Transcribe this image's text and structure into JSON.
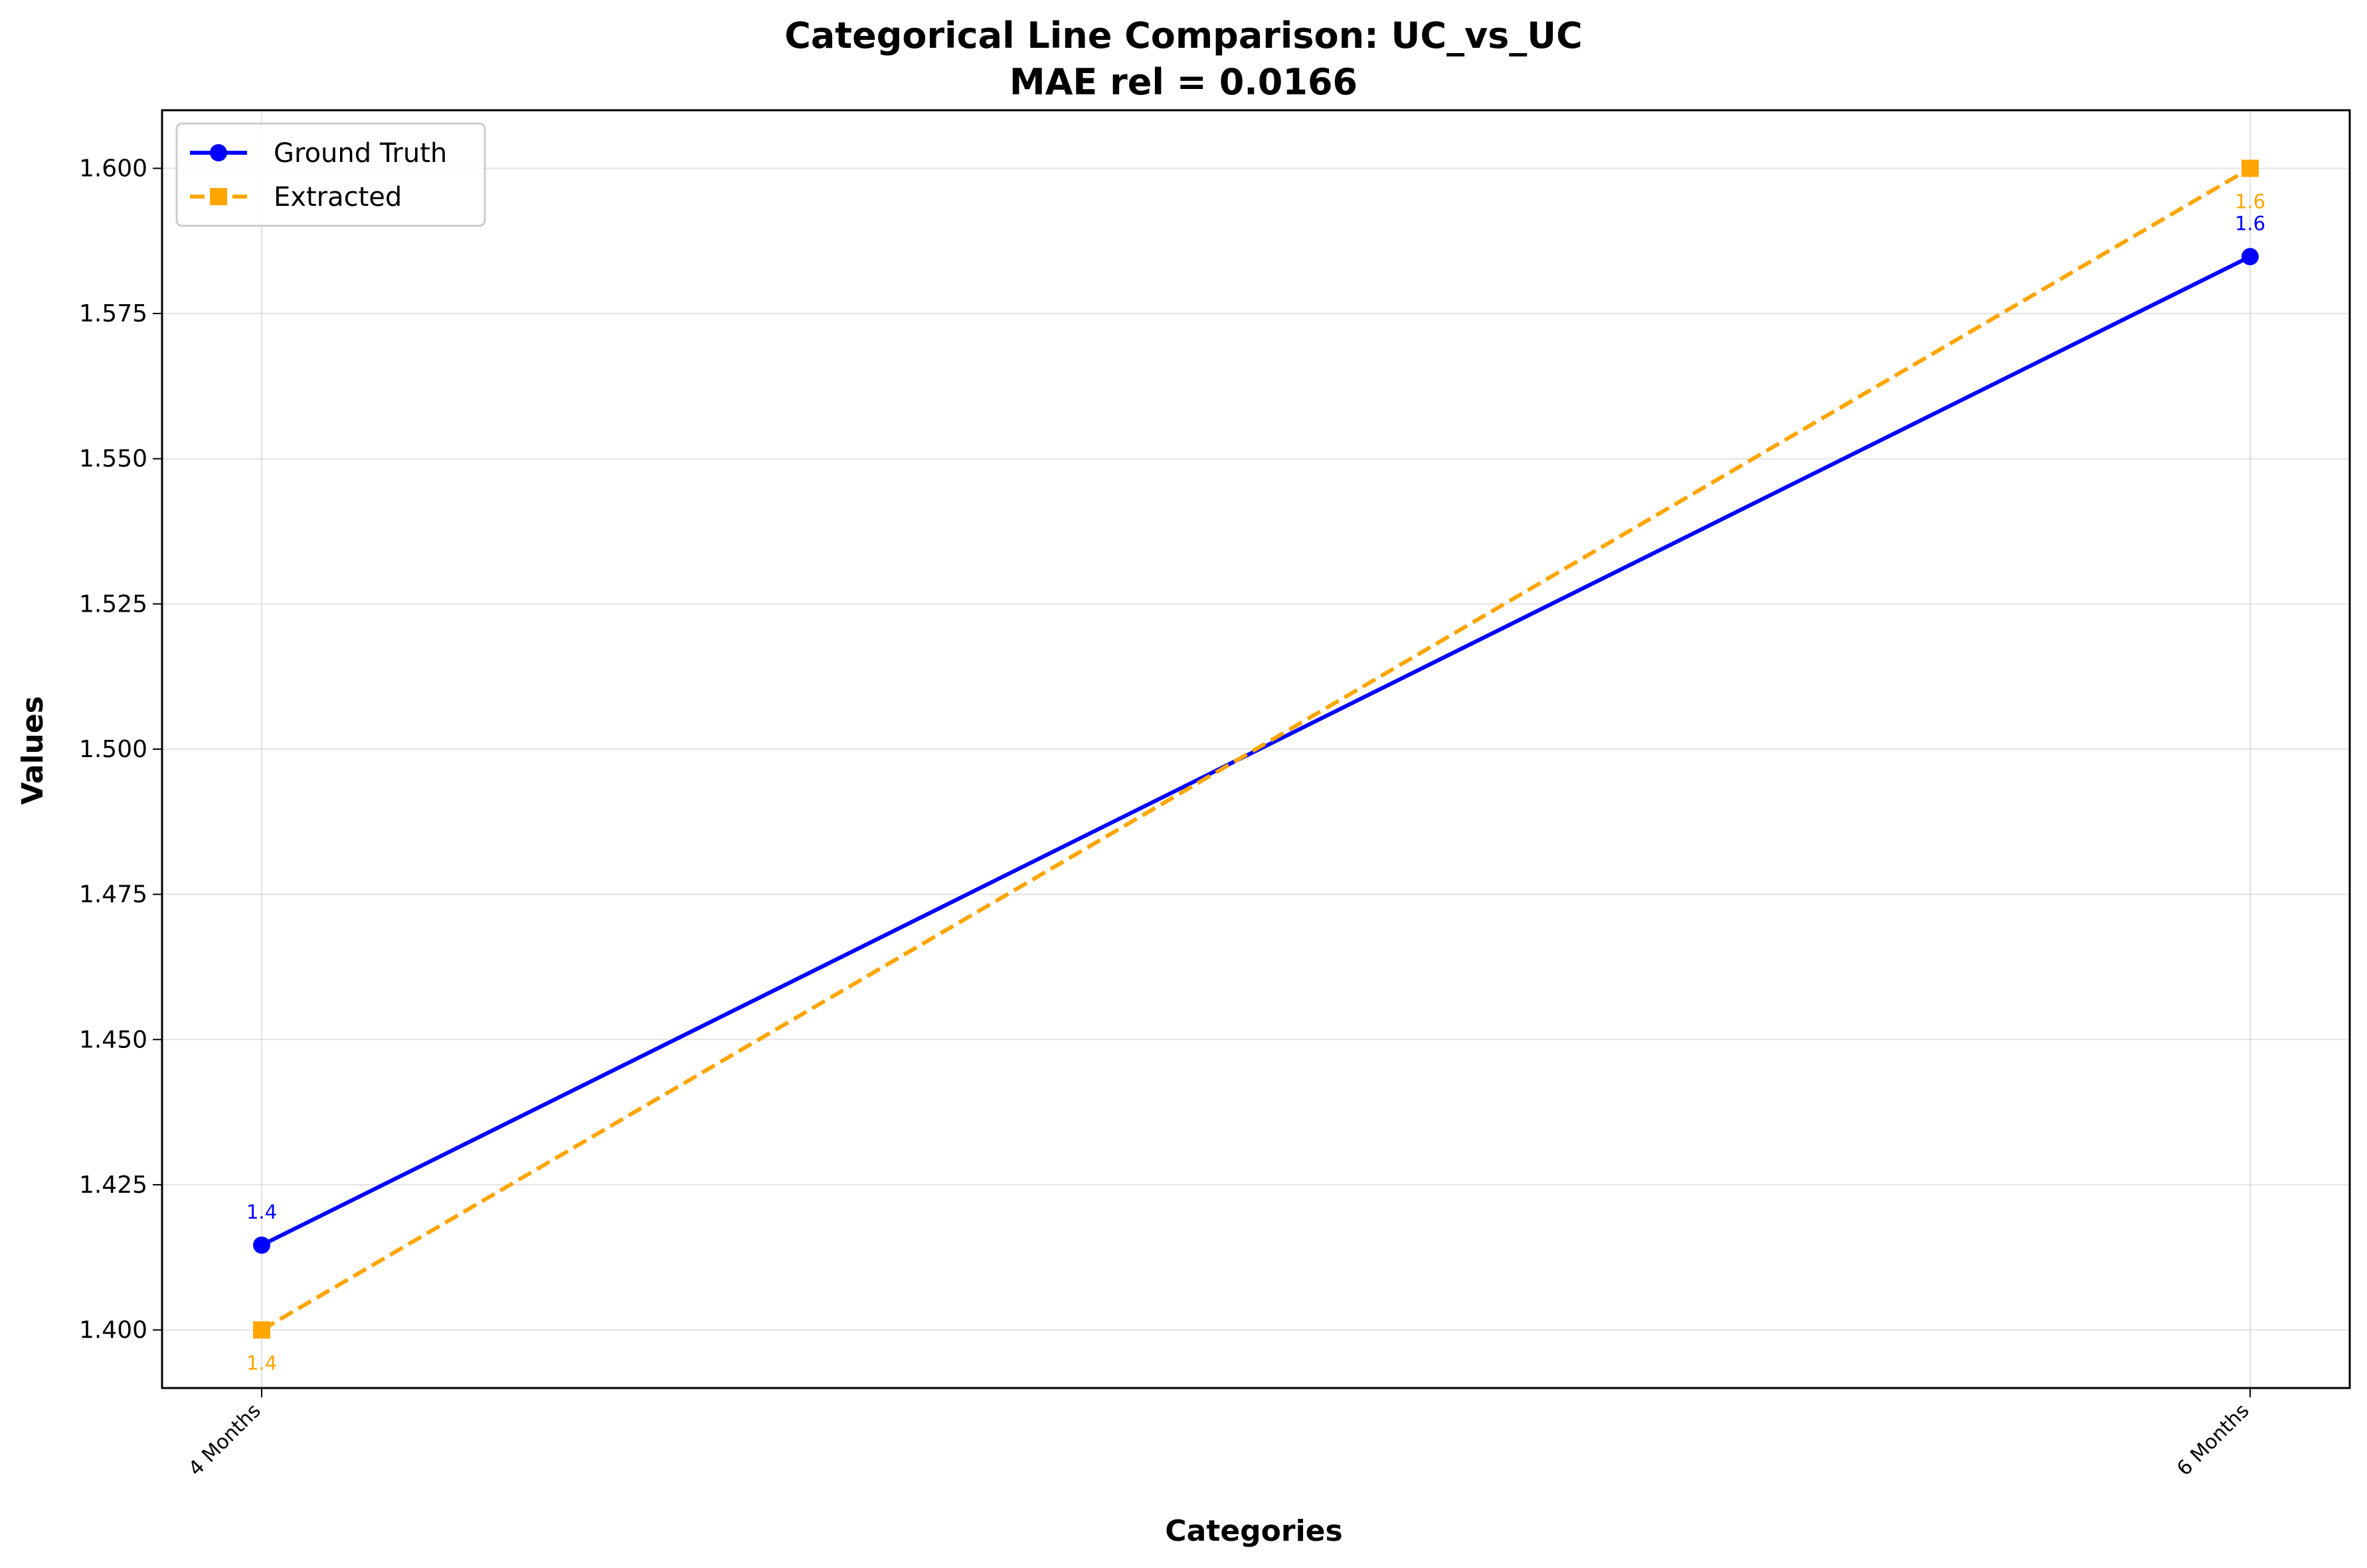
{
  "chart_data": {
    "type": "line",
    "title": "Categorical Line Comparison: UC_vs_UC",
    "subtitle": "MAE rel = 0.0166",
    "xlabel": "Categories",
    "ylabel": "Values",
    "categories": [
      "4 Months",
      "6 Months"
    ],
    "ylim": [
      1.39,
      1.61
    ],
    "yticks": [
      "1.400",
      "1.425",
      "1.450",
      "1.475",
      "1.500",
      "1.525",
      "1.550",
      "1.575",
      "1.600"
    ],
    "grid": true,
    "legend_position": "top-left",
    "series": [
      {
        "name": "Ground Truth",
        "values": [
          1.4146,
          1.5848
        ],
        "data_labels": [
          "1.4",
          "1.6"
        ],
        "color": "#0000ff",
        "line_style": "solid",
        "marker": "circle"
      },
      {
        "name": "Extracted",
        "values": [
          1.4,
          1.6
        ],
        "data_labels": [
          "1.4",
          "1.6"
        ],
        "color": "#ffa500",
        "line_style": "dashed",
        "marker": "square"
      }
    ]
  }
}
